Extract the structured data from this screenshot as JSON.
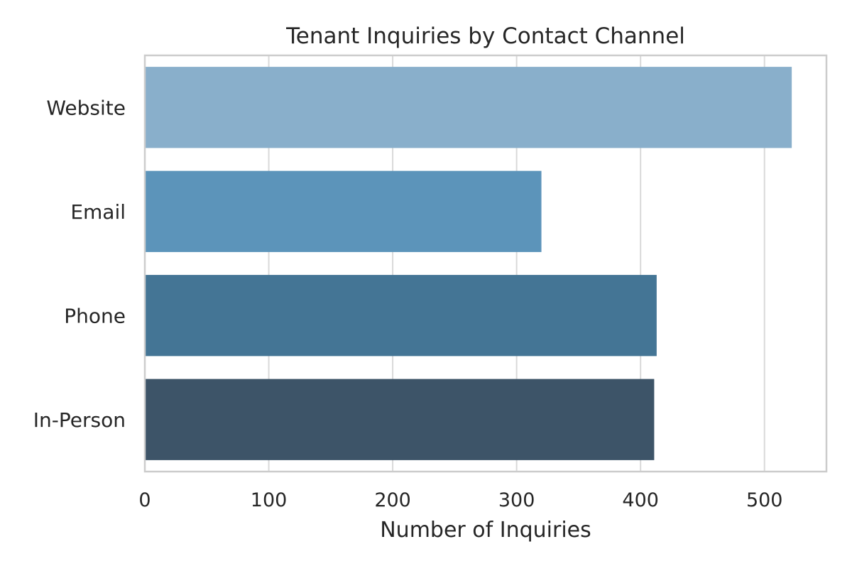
{
  "chart_data": {
    "type": "bar",
    "orientation": "horizontal",
    "title": "Tenant Inquiries by Contact Channel",
    "xlabel": "Number of Inquiries",
    "ylabel": "",
    "categories": [
      "Website",
      "Email",
      "Phone",
      "In-Person"
    ],
    "values": [
      522,
      320,
      413,
      411
    ],
    "colors": [
      "#89afcb",
      "#5c94ba",
      "#447595",
      "#3d5468"
    ],
    "xlim": [
      0,
      550
    ],
    "xticks": [
      0,
      100,
      200,
      300,
      400,
      500
    ],
    "xtick_labels": [
      "0",
      "100",
      "200",
      "300",
      "400",
      "500"
    ],
    "grid": true,
    "grid_color": "#d9d9d9",
    "frame_color": "#cccccc"
  }
}
